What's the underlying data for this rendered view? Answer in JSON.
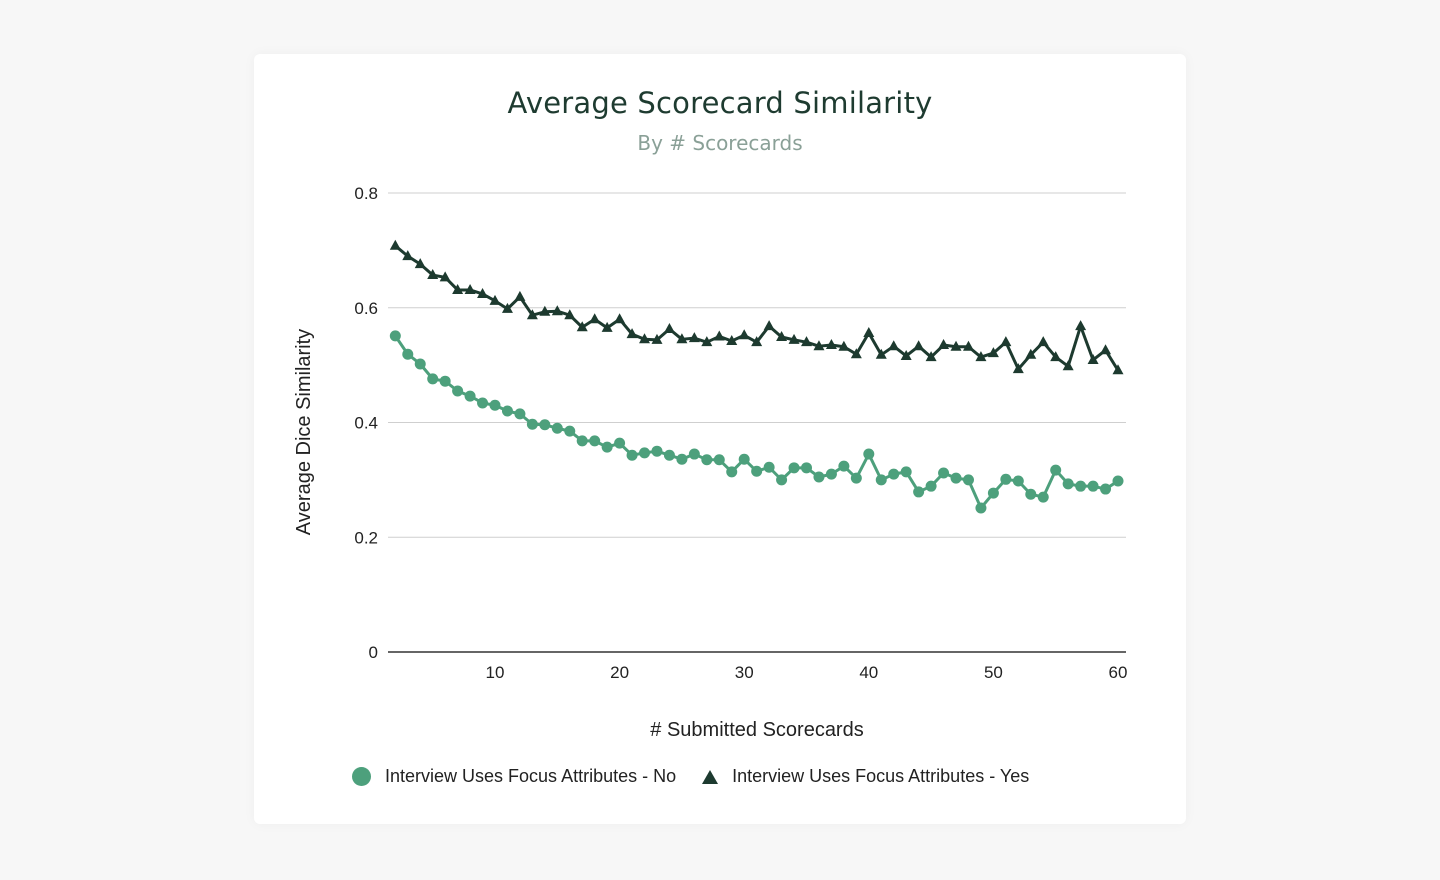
{
  "chart_data": {
    "type": "line",
    "title": "Average Scorecard Similarity",
    "subtitle": "By # Scorecards",
    "xlabel": "# Submitted Scorecards",
    "ylabel": "Average Dice Similarity",
    "xlim": [
      2,
      60
    ],
    "ylim": [
      0,
      0.8
    ],
    "xticks": [
      10,
      20,
      30,
      40,
      50,
      60
    ],
    "yticks": [
      0,
      0.2,
      0.4,
      0.6,
      0.8
    ],
    "ytick_labels": [
      "0",
      "0.2",
      "0.4",
      "0.6",
      "0.8"
    ],
    "grid": "horizontal",
    "legend_position": "bottom",
    "x": [
      2,
      3,
      4,
      5,
      6,
      7,
      8,
      9,
      10,
      11,
      12,
      13,
      14,
      15,
      16,
      17,
      18,
      19,
      20,
      21,
      22,
      23,
      24,
      25,
      26,
      27,
      28,
      29,
      30,
      31,
      32,
      33,
      34,
      35,
      36,
      37,
      38,
      39,
      40,
      41,
      42,
      43,
      44,
      45,
      46,
      47,
      48,
      49,
      50,
      51,
      52,
      53,
      54,
      55,
      56,
      57,
      58,
      59,
      60
    ],
    "series": [
      {
        "name": "Interview Uses Focus Attributes - No",
        "marker": "circle",
        "color": "#4da07c",
        "values": [
          0.551,
          0.519,
          0.502,
          0.476,
          0.472,
          0.455,
          0.446,
          0.434,
          0.43,
          0.42,
          0.415,
          0.397,
          0.396,
          0.39,
          0.385,
          0.368,
          0.368,
          0.357,
          0.364,
          0.343,
          0.347,
          0.35,
          0.343,
          0.336,
          0.345,
          0.335,
          0.335,
          0.314,
          0.336,
          0.315,
          0.322,
          0.3,
          0.321,
          0.321,
          0.305,
          0.31,
          0.324,
          0.303,
          0.345,
          0.3,
          0.31,
          0.314,
          0.279,
          0.289,
          0.312,
          0.303,
          0.3,
          0.251,
          0.277,
          0.301,
          0.298,
          0.275,
          0.27,
          0.317,
          0.293,
          0.289,
          0.289,
          0.284,
          0.298
        ]
      },
      {
        "name": "Interview Uses Focus Attributes - Yes",
        "marker": "triangle",
        "color": "#1d3a2f",
        "values": [
          0.708,
          0.69,
          0.676,
          0.657,
          0.653,
          0.631,
          0.631,
          0.624,
          0.612,
          0.598,
          0.619,
          0.587,
          0.593,
          0.594,
          0.587,
          0.566,
          0.58,
          0.565,
          0.58,
          0.554,
          0.545,
          0.544,
          0.563,
          0.545,
          0.547,
          0.54,
          0.55,
          0.542,
          0.552,
          0.54,
          0.568,
          0.549,
          0.544,
          0.54,
          0.533,
          0.535,
          0.532,
          0.519,
          0.556,
          0.518,
          0.533,
          0.516,
          0.533,
          0.514,
          0.535,
          0.532,
          0.532,
          0.514,
          0.521,
          0.54,
          0.493,
          0.518,
          0.54,
          0.514,
          0.498,
          0.568,
          0.509,
          0.526,
          0.491
        ]
      }
    ]
  }
}
